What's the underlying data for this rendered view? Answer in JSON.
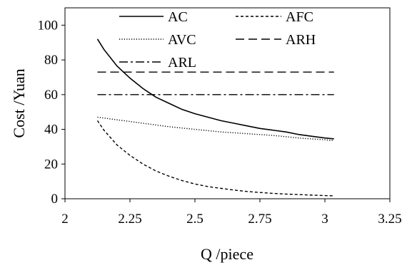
{
  "chart_data": {
    "type": "line",
    "title": "",
    "xlabel": "Q /piece",
    "ylabel": "Cost /Yuan",
    "xlim": [
      2,
      3.25
    ],
    "ylim": [
      0,
      110
    ],
    "x_ticks": [
      2,
      2.25,
      2.5,
      2.75,
      3,
      3.25
    ],
    "x_tick_labels": [
      "2",
      "2.25",
      "2.5",
      "2.75",
      "3",
      "3.25"
    ],
    "y_ticks": [
      0,
      20,
      40,
      60,
      80,
      100
    ],
    "y_tick_labels": [
      "0",
      "20",
      "40",
      "60",
      "80",
      "100"
    ],
    "grid": false,
    "legend_position": "top",
    "series": [
      {
        "name": "AC",
        "style": "solid",
        "x": [
          2.125,
          2.15,
          2.2,
          2.25,
          2.3,
          2.35,
          2.4,
          2.45,
          2.5,
          2.55,
          2.6,
          2.65,
          2.7,
          2.75,
          2.8,
          2.85,
          2.9,
          2.95,
          3.0,
          3.035
        ],
        "y": [
          92,
          86,
          76.5,
          69.5,
          63.5,
          58.5,
          55,
          51.5,
          49,
          47,
          45,
          43.5,
          42,
          40.5,
          39.5,
          38.5,
          37,
          36,
          35,
          34.5
        ]
      },
      {
        "name": "AFC",
        "style": "dash-short",
        "x": [
          2.125,
          2.15,
          2.2,
          2.25,
          2.3,
          2.35,
          2.4,
          2.45,
          2.5,
          2.55,
          2.6,
          2.65,
          2.7,
          2.75,
          2.8,
          2.85,
          2.9,
          2.95,
          3.0,
          3.035
        ],
        "y": [
          45,
          39.5,
          31,
          25,
          20,
          16,
          13,
          10.5,
          8.5,
          7,
          6,
          5,
          4.2,
          3.6,
          3.1,
          2.7,
          2.4,
          2.1,
          1.8,
          1.7
        ]
      },
      {
        "name": "AVC",
        "style": "dotted",
        "x": [
          2.125,
          2.2,
          2.3,
          2.4,
          2.5,
          2.6,
          2.7,
          2.8,
          2.9,
          3.0,
          3.035
        ],
        "y": [
          47,
          45.5,
          43.5,
          41.5,
          40,
          38.5,
          37.5,
          36.5,
          35,
          34,
          33.5
        ]
      },
      {
        "name": "ARH",
        "style": "dash-long",
        "x": [
          2.125,
          3.035
        ],
        "y": [
          73,
          73
        ]
      },
      {
        "name": "ARL",
        "style": "dash-dot",
        "x": [
          2.125,
          3.035
        ],
        "y": [
          60,
          60
        ]
      }
    ]
  }
}
